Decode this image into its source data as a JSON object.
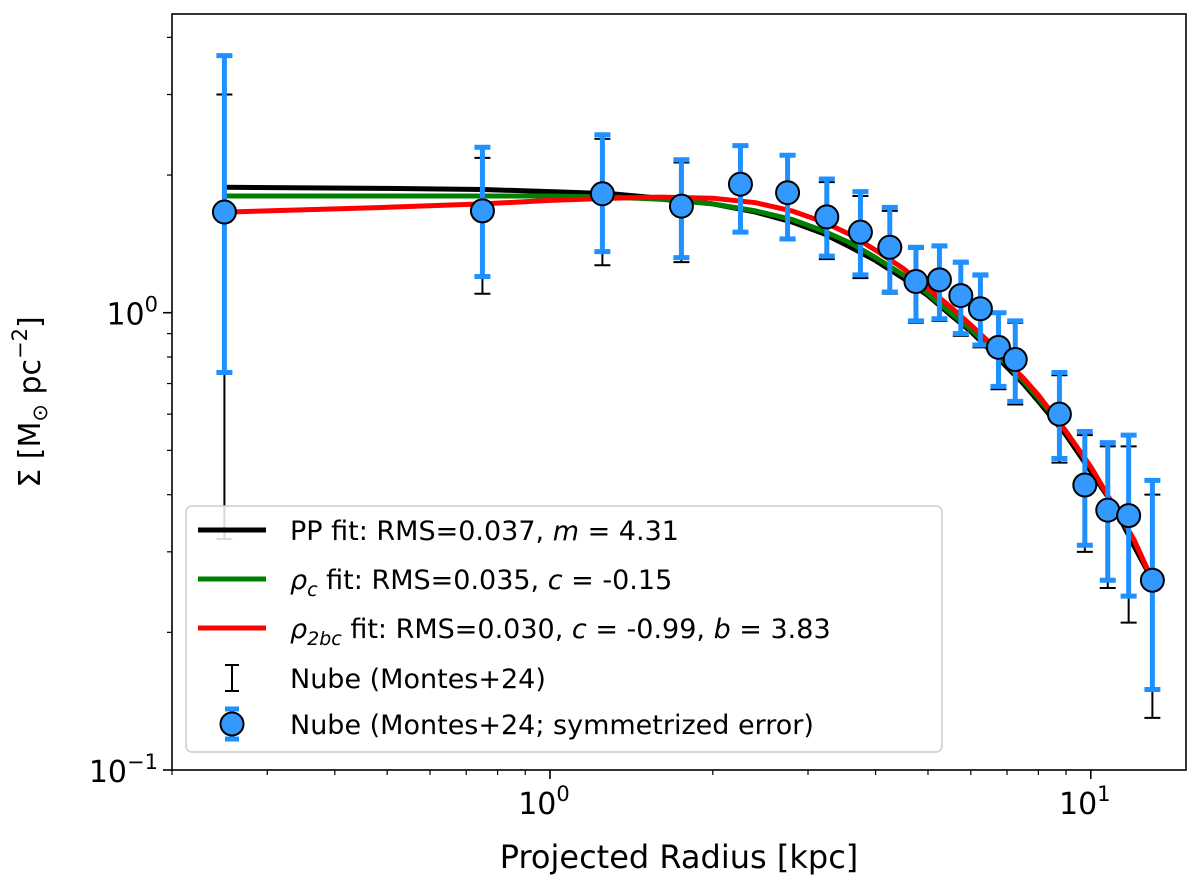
{
  "chart_data": {
    "type": "line",
    "xscale": "log",
    "yscale": "log",
    "xlim": [
      0.2,
      15
    ],
    "ylim": [
      0.1,
      4.5
    ],
    "xlabel": "Projected Radius [kpc]",
    "ylabel": "Σ [M⊙ pc⁻²]",
    "ylabel_base": "Σ [M",
    "ylabel_sub": "⊙",
    "ylabel_mid": " pc",
    "ylabel_sup": "−2",
    "ylabel_end": "]",
    "x_ticks": [
      {
        "value": 1,
        "base": "10",
        "exp": "0"
      },
      {
        "value": 10,
        "base": "10",
        "exp": "1"
      }
    ],
    "y_ticks": [
      {
        "value": 0.1,
        "base": "10",
        "exp": "−1"
      },
      {
        "value": 1,
        "base": "10",
        "exp": "0"
      }
    ],
    "series": [
      {
        "name": "PP fit",
        "color": "#000000",
        "x": [
          0.25,
          0.5,
          0.75,
          1.0,
          1.3,
          1.6,
          2.0,
          2.4,
          2.8,
          3.2,
          3.6,
          4.0,
          4.5,
          5.0,
          5.5,
          6.0,
          6.5,
          7.0,
          7.5,
          8.0,
          9.0,
          10.0,
          11.0,
          12.0,
          13.0
        ],
        "y": [
          1.88,
          1.87,
          1.86,
          1.84,
          1.82,
          1.78,
          1.73,
          1.66,
          1.58,
          1.49,
          1.39,
          1.3,
          1.19,
          1.09,
          0.99,
          0.91,
          0.83,
          0.76,
          0.7,
          0.64,
          0.54,
          0.45,
          0.38,
          0.31,
          0.26
        ]
      },
      {
        "name": "ρc fit",
        "color": "#008000",
        "x": [
          0.25,
          0.5,
          0.75,
          1.0,
          1.3,
          1.6,
          2.0,
          2.4,
          2.8,
          3.2,
          3.6,
          4.0,
          4.5,
          5.0,
          5.5,
          6.0,
          6.5,
          7.0,
          7.5,
          8.0,
          9.0,
          10.0,
          11.0,
          12.0,
          13.0
        ],
        "y": [
          1.8,
          1.8,
          1.8,
          1.8,
          1.79,
          1.77,
          1.73,
          1.67,
          1.6,
          1.51,
          1.42,
          1.32,
          1.21,
          1.1,
          1.0,
          0.92,
          0.84,
          0.77,
          0.71,
          0.65,
          0.55,
          0.46,
          0.38,
          0.32,
          0.26
        ]
      },
      {
        "name": "ρ2bc fit",
        "color": "#ff0000",
        "x": [
          0.25,
          0.5,
          0.75,
          1.0,
          1.3,
          1.6,
          2.0,
          2.4,
          2.8,
          3.2,
          3.6,
          4.0,
          4.5,
          5.0,
          5.5,
          6.0,
          6.5,
          7.0,
          7.5,
          8.0,
          9.0,
          10.0,
          11.0,
          12.0,
          13.0
        ],
        "y": [
          1.66,
          1.7,
          1.73,
          1.76,
          1.78,
          1.79,
          1.78,
          1.74,
          1.67,
          1.58,
          1.48,
          1.37,
          1.25,
          1.13,
          1.03,
          0.94,
          0.86,
          0.78,
          0.72,
          0.66,
          0.55,
          0.46,
          0.38,
          0.32,
          0.26
        ]
      }
    ],
    "data_points": {
      "name": "Nube (Montes+24)",
      "x": [
        0.25,
        0.75,
        1.25,
        1.75,
        2.25,
        2.75,
        3.25,
        3.75,
        4.25,
        4.75,
        5.25,
        5.75,
        6.25,
        6.75,
        7.25,
        8.75,
        9.75,
        10.75,
        11.75,
        13.0
      ],
      "y": [
        1.66,
        1.67,
        1.82,
        1.71,
        1.91,
        1.83,
        1.62,
        1.5,
        1.39,
        1.17,
        1.18,
        1.09,
        1.02,
        0.84,
        0.79,
        0.6,
        0.42,
        0.37,
        0.36,
        0.26
      ],
      "asym_low": [
        0.32,
        1.1,
        1.27,
        1.29,
        1.5,
        1.44,
        1.31,
        1.19,
        1.1,
        0.95,
        0.96,
        0.89,
        0.84,
        0.68,
        0.63,
        0.47,
        0.3,
        0.25,
        0.21,
        0.13
      ],
      "asym_high": [
        3.0,
        2.18,
        2.4,
        2.13,
        2.32,
        2.22,
        1.93,
        1.8,
        1.67,
        1.38,
        1.39,
        1.28,
        1.2,
        1.0,
        0.95,
        0.73,
        0.54,
        0.51,
        0.51,
        0.4
      ],
      "sym_low": [
        0.74,
        1.2,
        1.36,
        1.32,
        1.5,
        1.45,
        1.33,
        1.21,
        1.11,
        0.96,
        0.97,
        0.9,
        0.85,
        0.69,
        0.64,
        0.48,
        0.31,
        0.26,
        0.24,
        0.15
      ],
      "sym_high": [
        3.65,
        2.3,
        2.45,
        2.16,
        2.32,
        2.21,
        1.96,
        1.84,
        1.7,
        1.39,
        1.4,
        1.29,
        1.21,
        1.0,
        0.96,
        0.74,
        0.55,
        0.52,
        0.54,
        0.43
      ],
      "marker_color": "#3399ff",
      "sym_color": "#1e90ff",
      "asym_color": "#000000"
    },
    "legend": {
      "placement": "lower-left",
      "entries": [
        {
          "pre": "PP fit: RMS=0.037, ",
          "sym": "m",
          "sub": "",
          "post": " = 4.31"
        },
        {
          "pre": "",
          "sym": "ρ",
          "sub": "c",
          "post": " fit: RMS=0.035, ",
          "sym2": "c",
          "post2": " = -0.15"
        },
        {
          "pre": "",
          "sym": "ρ",
          "sub": "2bc",
          "post": " fit: RMS=0.030, ",
          "sym2": "c",
          "post2": " = -0.99, ",
          "sym3": "b",
          "post3": " = 3.83"
        },
        {
          "text": "Nube (Montes+24)"
        },
        {
          "text": "Nube (Montes+24; symmetrized error)"
        }
      ]
    }
  }
}
